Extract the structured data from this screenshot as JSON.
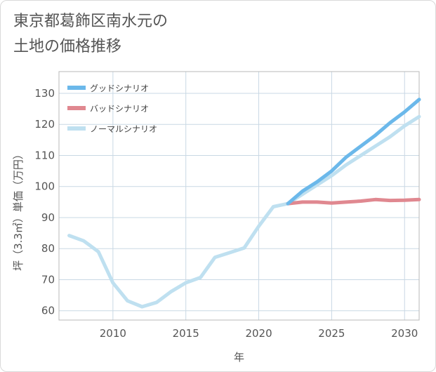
{
  "title_lines": [
    "東京都葛飾区南水元の",
    "土地の価格推移"
  ],
  "chart_data": {
    "type": "line",
    "title": "東京都葛飾区南水元の土地の価格推移",
    "xlabel": "年",
    "ylabel": "坪（3.3㎡）単価（万円）",
    "xlim": [
      2006.3,
      2031
    ],
    "ylim": [
      57,
      137
    ],
    "x_ticks": [
      2010,
      2015,
      2020,
      2025,
      2030
    ],
    "y_ticks": [
      60,
      70,
      80,
      90,
      100,
      110,
      120,
      130
    ],
    "grid": true,
    "legend_position": "top-left",
    "series": [
      {
        "name": "グッドシナリオ",
        "color": "#6bb8ea",
        "x": [
          2022,
          2023,
          2024,
          2025,
          2026,
          2027,
          2028,
          2029,
          2030,
          2031
        ],
        "y": [
          94.5,
          98.5,
          101.5,
          105,
          109.5,
          113,
          116.5,
          120.5,
          124,
          128
        ]
      },
      {
        "name": "バッドシナリオ",
        "color": "#e08890",
        "x": [
          2022,
          2023,
          2024,
          2025,
          2026,
          2027,
          2028,
          2029,
          2030,
          2031
        ],
        "y": [
          94.5,
          95,
          95,
          94.7,
          95,
          95.3,
          95.8,
          95.5,
          95.6,
          95.8
        ]
      },
      {
        "name": "ノーマルシナリオ",
        "color": "#bfe0f0",
        "x": [
          2007,
          2008,
          2009,
          2010,
          2011,
          2012,
          2013,
          2014,
          2015,
          2016,
          2017,
          2018,
          2019,
          2020,
          2021,
          2022,
          2023,
          2024,
          2025,
          2026,
          2027,
          2028,
          2029,
          2030,
          2031
        ],
        "y": [
          84.2,
          82.5,
          79,
          69,
          63.2,
          61.3,
          62.7,
          66.2,
          69,
          70.7,
          77.2,
          78.7,
          80.2,
          87.2,
          93.5,
          94.5,
          97.5,
          100.5,
          103.5,
          107,
          110,
          113,
          116,
          119.5,
          122.5
        ]
      }
    ]
  }
}
